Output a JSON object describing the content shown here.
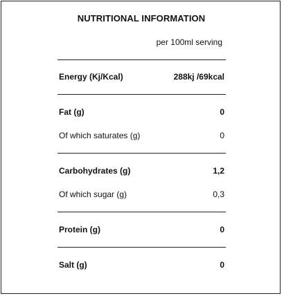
{
  "title": "NUTRITIONAL INFORMATION",
  "serving_label": "per 100ml serving",
  "rows": [
    {
      "name": "Energy (Kj/Kcal)",
      "value": "288kj /69kcal",
      "bold": true
    },
    {
      "name": "Fat (g)",
      "value": "0",
      "bold": true
    },
    {
      "name": "Of which saturates (g)",
      "value": "0",
      "bold": false
    },
    {
      "name": "Carbohydrates (g)",
      "value": "1,2",
      "bold": true
    },
    {
      "name": "Of which sugar (g)",
      "value": "0,3",
      "bold": false
    },
    {
      "name": "Protein (g)",
      "value": "0",
      "bold": true
    },
    {
      "name": "Salt (g)",
      "value": "0",
      "bold": true
    }
  ]
}
